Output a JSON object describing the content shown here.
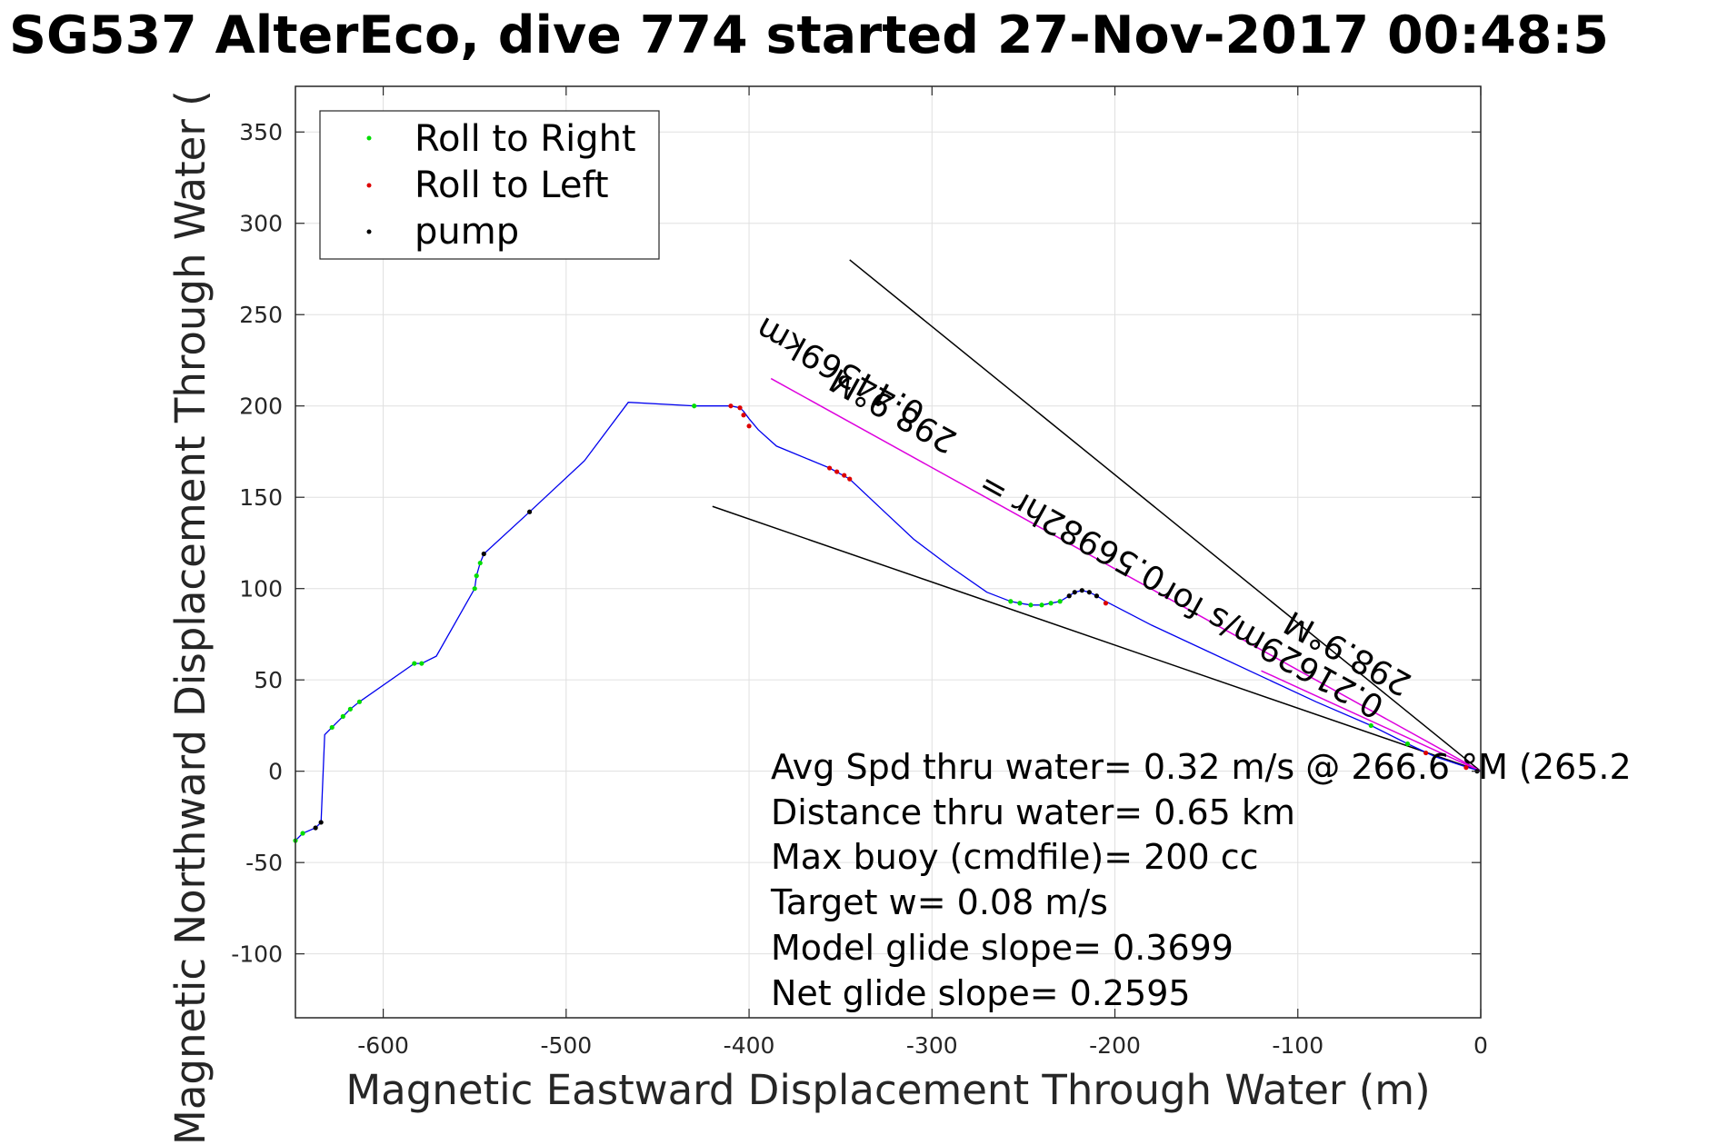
{
  "chart_data": {
    "type": "line",
    "title": "SG537 AlterEco, dive 774 started 27-Nov-2017 00:48:5",
    "xlabel": "Magnetic Eastward Displacement Through Water (m)",
    "ylabel": "Magnetic Northward Displacement Through Water (",
    "xlim": [
      -648,
      0
    ],
    "ylim": [
      -135,
      375
    ],
    "xticks": [
      -600,
      -500,
      -400,
      -300,
      -200,
      -100,
      0
    ],
    "yticks": [
      -100,
      -50,
      0,
      50,
      100,
      150,
      200,
      250,
      300,
      350
    ],
    "grid": true,
    "legend_position": "top-left",
    "legend": [
      {
        "label": "Roll to Right",
        "color": "#00dd00"
      },
      {
        "label": "Roll to Left",
        "color": "#dd0000"
      },
      {
        "label": "pump",
        "color": "#000000"
      }
    ],
    "colors": {
      "track": "#0000ee",
      "heading_line": "#dd00dd",
      "wedge": "#000000"
    },
    "track": {
      "name": "dive track",
      "x": [
        -648,
        -644,
        -637,
        -634,
        -632,
        -628,
        -622,
        -618,
        -613,
        -583,
        -579,
        -571,
        -550,
        -549,
        -547,
        -545,
        -520,
        -490,
        -466,
        -430,
        -410,
        -405,
        -403,
        -400,
        -395,
        -385,
        -356,
        -345,
        -327,
        -310,
        -290,
        -270,
        -257,
        -252,
        -246,
        -240,
        -235,
        -230,
        -225,
        -222,
        -218,
        -214,
        -210,
        -205,
        -180,
        -150,
        -120,
        -90,
        -60,
        -40,
        -25,
        -10,
        0
      ],
      "y": [
        -38,
        -34,
        -31,
        -28,
        20,
        24,
        30,
        34,
        38,
        59,
        59,
        63,
        100,
        107,
        114,
        119,
        142,
        170,
        202,
        200,
        200,
        199,
        197,
        193,
        187,
        178,
        166,
        160,
        143,
        127,
        112,
        98,
        93,
        92,
        91,
        91,
        92,
        93,
        96,
        98,
        99,
        98,
        96,
        93,
        80,
        66,
        52,
        38,
        25,
        15,
        8,
        3,
        0
      ]
    },
    "roll_right": {
      "x": [
        -648,
        -644,
        -628,
        -622,
        -618,
        -613,
        -583,
        -579,
        -550,
        -549,
        -547,
        -430,
        -257,
        -252,
        -246,
        -240,
        -235,
        -230,
        -60,
        -40
      ],
      "y": [
        -38,
        -34,
        24,
        30,
        34,
        38,
        59,
        59,
        100,
        107,
        114,
        200,
        93,
        92,
        91,
        91,
        92,
        93,
        25,
        15
      ]
    },
    "roll_left": {
      "x": [
        -410,
        -405,
        -403,
        -400,
        -356,
        -352,
        -348,
        -345,
        -205,
        -30,
        -8
      ],
      "y": [
        200,
        199,
        195,
        189,
        166,
        164,
        162,
        160,
        92,
        10,
        2
      ]
    },
    "pump": {
      "x": [
        -637,
        -634,
        -545,
        -520,
        -225,
        -222,
        -218,
        -214,
        -210,
        -2
      ],
      "y": [
        -31,
        -28,
        119,
        142,
        96,
        98,
        99,
        98,
        96,
        0
      ]
    },
    "heading_lines": [
      {
        "from": [
          -388,
          215
        ],
        "to": [
          0,
          0
        ],
        "label": "298.9°M"
      },
      {
        "from": [
          -388,
          215
        ],
        "to": [
          0,
          0
        ],
        "label": "0.44369km"
      },
      {
        "from": [
          -388,
          215
        ],
        "to": [
          0,
          0
        ],
        "label": "0.56982hr ="
      },
      {
        "from": [
          -388,
          215
        ],
        "to": [
          0,
          0
        ],
        "label": "0.21629m/s for"
      },
      {
        "from": [
          -120,
          55
        ],
        "to": [
          0,
          0
        ],
        "label": "298.9°M"
      }
    ],
    "wedge_lines": [
      {
        "from": [
          -345,
          280
        ],
        "to": [
          0,
          0
        ]
      },
      {
        "from": [
          -420,
          145
        ],
        "to": [
          0,
          0
        ]
      }
    ],
    "annotations": [
      "Avg Spd thru water=  0.32 m/s @ 266.6 °M (265.2",
      "Distance thru water=  0.65 km",
      "Max buoy (cmdfile)= 200 cc",
      "Target w= 0.08 m/s",
      "Model glide slope= 0.3699",
      "Net glide slope= 0.2595"
    ]
  }
}
